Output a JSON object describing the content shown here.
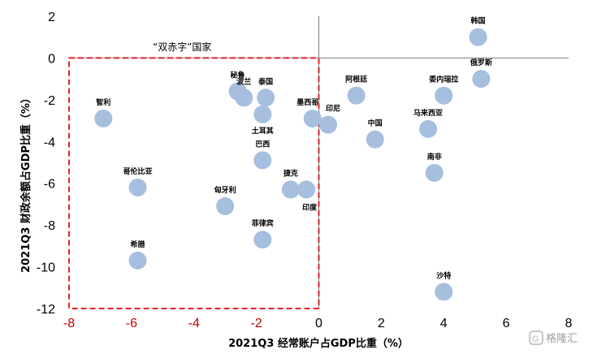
{
  "chart_data": {
    "type": "scatter",
    "xlabel": "2021Q3 经常账户占GDP比重（%）",
    "ylabel": "2021Q3 财政余额占GDP比重（%）",
    "xlim": [
      -8,
      8
    ],
    "ylim": [
      -12,
      2
    ],
    "x_ticks": [
      "-8",
      "-6",
      "-4",
      "-2",
      "0",
      "2",
      "4",
      "6",
      "8"
    ],
    "y_ticks": [
      "2",
      "0",
      "-2",
      "-4",
      "-6",
      "-8",
      "-10",
      "-12"
    ],
    "grid": false,
    "marker_color": "#a6bfdf",
    "region_color": "#e0262b",
    "annotation": "“双赤字”国家",
    "points": [
      {
        "label": "韩国",
        "x": 5.1,
        "y": 1.0
      },
      {
        "label": "俄罗斯",
        "x": 5.2,
        "y": -1.0
      },
      {
        "label": "委内瑞拉",
        "x": 4.0,
        "y": -1.8
      },
      {
        "label": "阿根廷",
        "x": 1.2,
        "y": -1.8
      },
      {
        "label": "马来西亚",
        "x": 3.5,
        "y": -3.4
      },
      {
        "label": "中国",
        "x": 1.8,
        "y": -3.9
      },
      {
        "label": "南非",
        "x": 3.7,
        "y": -5.5
      },
      {
        "label": "沙特",
        "x": 4.0,
        "y": -11.2
      },
      {
        "label": "印尼",
        "x": 0.3,
        "y": -3.2
      },
      {
        "label": "墨西哥",
        "x": -0.2,
        "y": -2.9
      },
      {
        "label": "秘鲁",
        "x": -2.6,
        "y": -1.6
      },
      {
        "label": "波兰",
        "x": -2.4,
        "y": -1.9
      },
      {
        "label": "泰国",
        "x": -1.7,
        "y": -1.9
      },
      {
        "label": "土耳其",
        "x": -1.8,
        "y": -2.7
      },
      {
        "label": "巴西",
        "x": -1.8,
        "y": -4.9
      },
      {
        "label": "捷克",
        "x": -0.9,
        "y": -6.3
      },
      {
        "label": "印度",
        "x": -0.4,
        "y": -6.3
      },
      {
        "label": "智利",
        "x": -6.9,
        "y": -2.9
      },
      {
        "label": "哥伦比亚",
        "x": -5.8,
        "y": -6.2
      },
      {
        "label": "匈牙利",
        "x": -3.0,
        "y": -7.1
      },
      {
        "label": "菲律宾",
        "x": -1.8,
        "y": -8.7
      },
      {
        "label": "希腊",
        "x": -5.8,
        "y": -9.7
      }
    ],
    "watermark": "格隆汇"
  }
}
